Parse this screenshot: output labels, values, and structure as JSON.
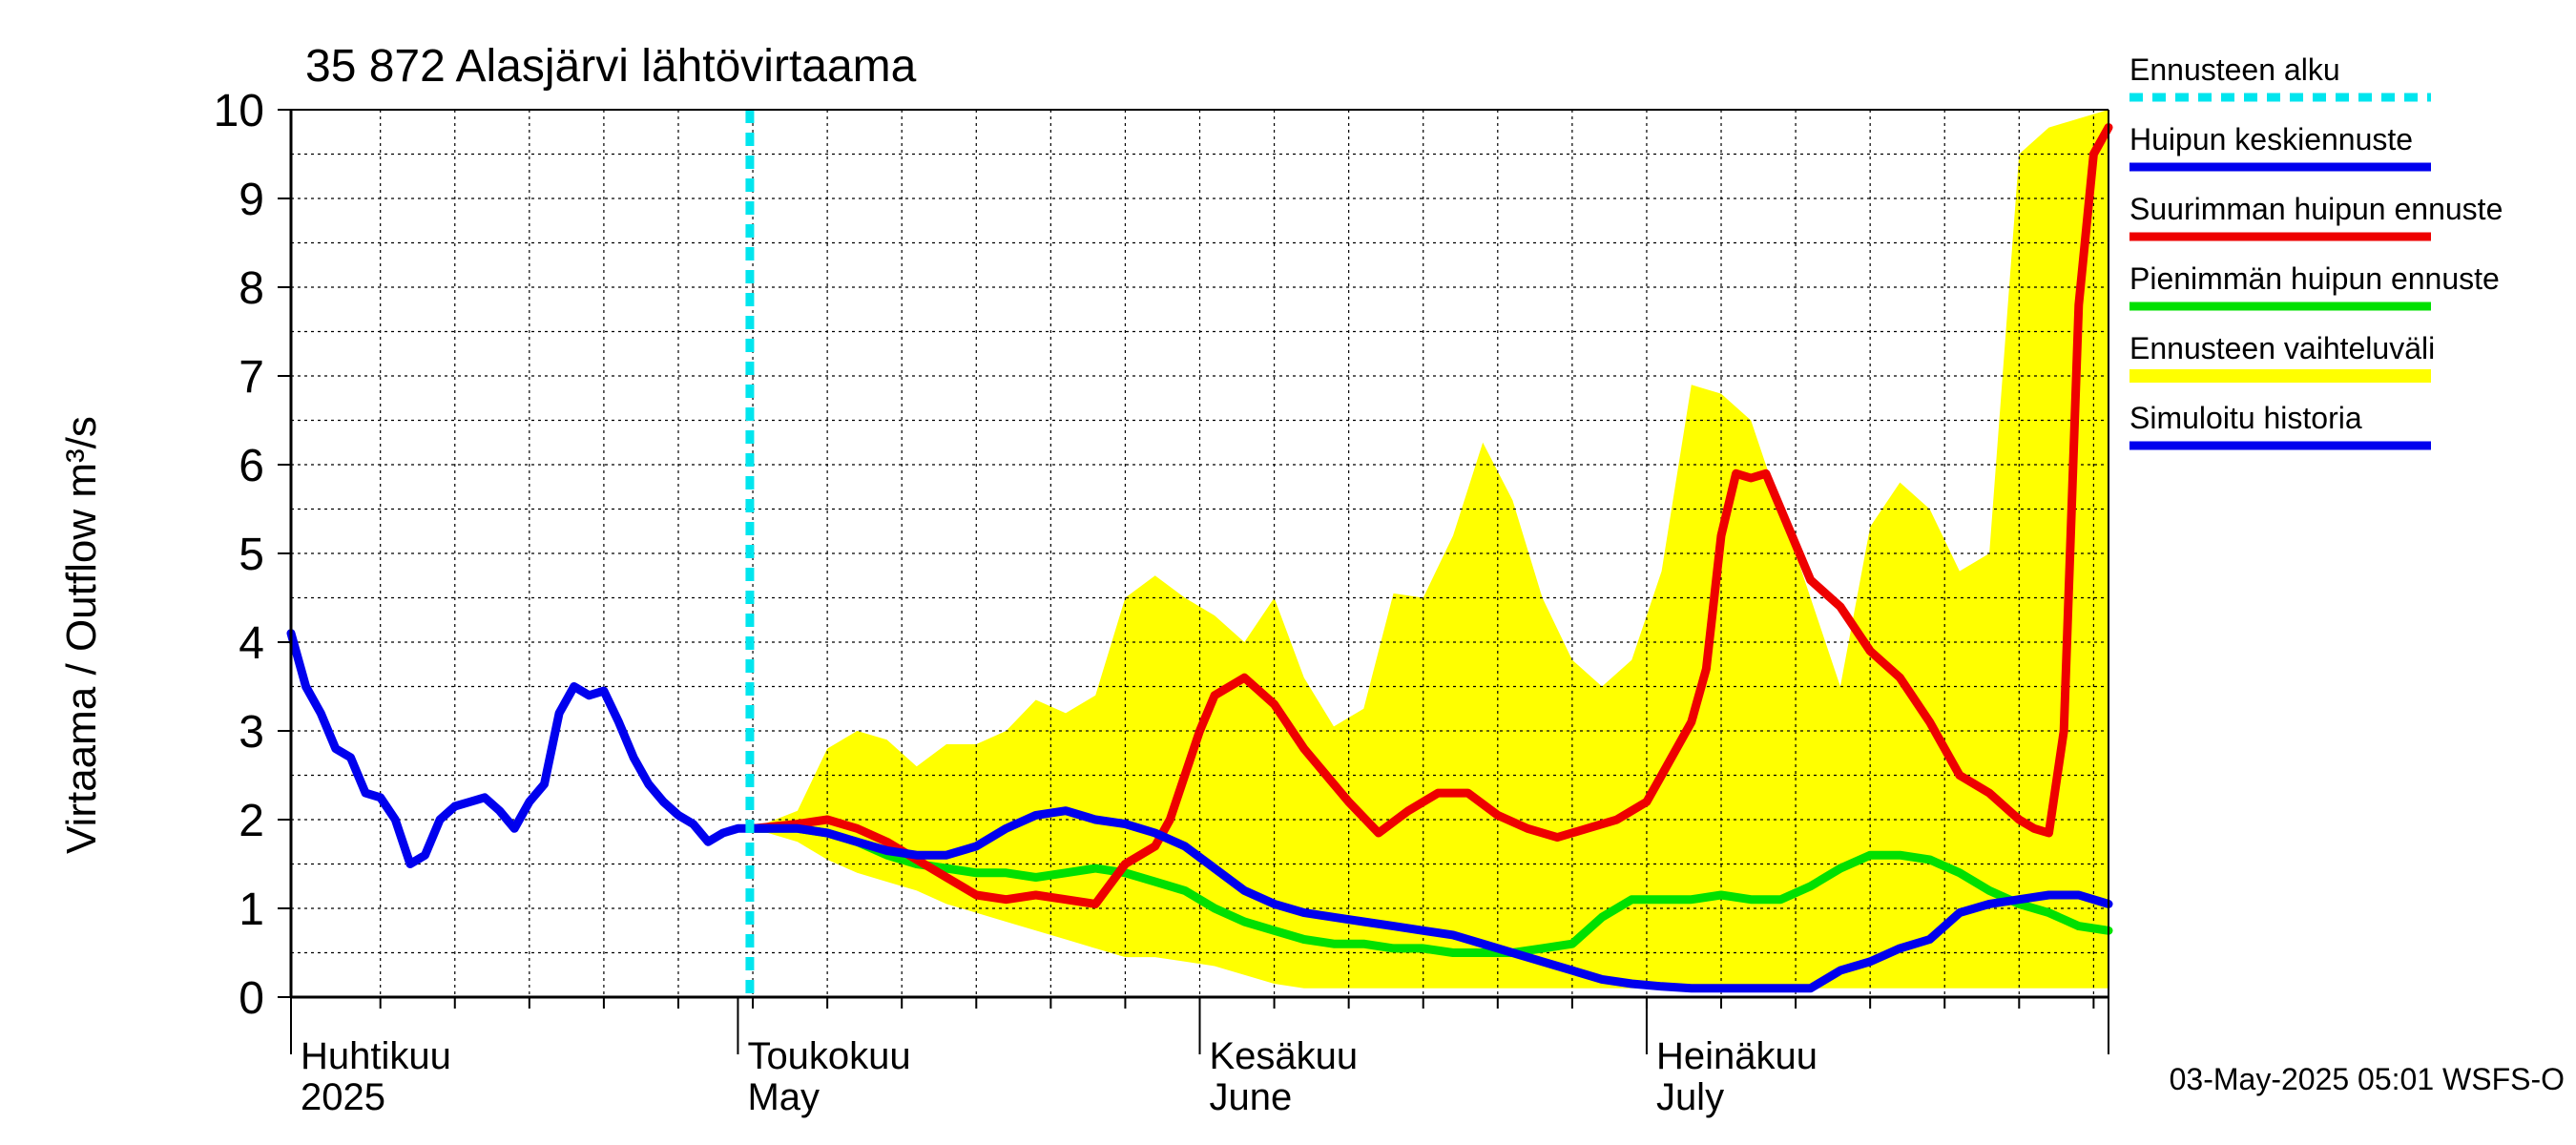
{
  "chart_data": {
    "type": "line",
    "title": "35 872 Alasjärvi lähtövirtaama",
    "ylabel": "Virtaama / Outflow    m³/s",
    "ylim": [
      0,
      10
    ],
    "y_ticks": [
      0,
      1,
      2,
      3,
      4,
      5,
      6,
      7,
      8,
      9,
      10
    ],
    "x_range_days": [
      0,
      122
    ],
    "month_labels": [
      {
        "day": 0,
        "fi": "Huhtikuu",
        "en": "2025"
      },
      {
        "day": 30,
        "fi": "Toukokuu",
        "en": "May"
      },
      {
        "day": 61,
        "fi": "Kesäkuu",
        "en": "June"
      },
      {
        "day": 91,
        "fi": "Heinäkuu",
        "en": "July"
      }
    ],
    "forecast_start_day": 30.8,
    "footer": "03-May-2025 05:01 WSFS-O",
    "legend": [
      {
        "label": "Ennusteen alku",
        "color": "#00e5ee",
        "style": "dashed"
      },
      {
        "label": "Huipun keskiennuste",
        "color": "#0000ee",
        "style": "solid"
      },
      {
        "label": "Suurimman huipun ennuste",
        "color": "#ee0000",
        "style": "solid"
      },
      {
        "label": "Pienimmän huipun ennuste",
        "color": "#00e000",
        "style": "solid"
      },
      {
        "label": "Ennusteen vaihteluväli",
        "color": "#ffff00",
        "style": "band"
      },
      {
        "label": "Simuloitu historia",
        "color": "#0000ee",
        "style": "solid"
      }
    ],
    "series": [
      {
        "name": "Simuloitu historia",
        "color": "#0000ee",
        "x": [
          0,
          1,
          2,
          3,
          4,
          5,
          6,
          7,
          8,
          9,
          10,
          11,
          12,
          13,
          14,
          15,
          16,
          17,
          18,
          19,
          20,
          21,
          22,
          23,
          24,
          25,
          26,
          27,
          28,
          29,
          30,
          31,
          32
        ],
        "y": [
          4.1,
          3.5,
          3.2,
          2.8,
          2.7,
          2.3,
          2.25,
          2.0,
          1.5,
          1.6,
          2.0,
          2.15,
          2.2,
          2.25,
          2.1,
          1.9,
          2.2,
          2.4,
          3.2,
          3.5,
          3.4,
          3.45,
          3.1,
          2.7,
          2.4,
          2.2,
          2.05,
          1.95,
          1.75,
          1.85,
          1.9,
          1.9,
          1.9
        ]
      },
      {
        "name": "Suurimman huipun ennuste",
        "color": "#ee0000",
        "x": [
          31,
          34,
          36,
          38,
          40,
          42,
          44,
          46,
          48,
          50,
          52,
          54,
          56,
          58,
          59,
          61,
          62,
          64,
          66,
          68,
          70,
          71,
          73,
          75,
          77,
          79,
          81,
          83,
          85,
          87,
          89,
          91,
          92,
          94,
          95,
          96,
          97,
          98,
          99,
          101,
          102,
          104,
          106,
          108,
          110,
          112,
          114,
          116,
          117,
          118,
          119,
          120,
          121,
          122
        ],
        "y": [
          1.9,
          1.95,
          2.0,
          1.9,
          1.75,
          1.55,
          1.35,
          1.15,
          1.1,
          1.15,
          1.1,
          1.05,
          1.5,
          1.7,
          2.0,
          3.0,
          3.4,
          3.6,
          3.3,
          2.8,
          2.4,
          2.2,
          1.85,
          2.1,
          2.3,
          2.3,
          2.05,
          1.9,
          1.8,
          1.9,
          2.0,
          2.2,
          2.5,
          3.1,
          3.7,
          5.2,
          5.9,
          5.85,
          5.9,
          5.1,
          4.7,
          4.4,
          3.9,
          3.6,
          3.1,
          2.5,
          2.3,
          2.0,
          1.9,
          1.85,
          3.0,
          7.8,
          9.5,
          9.8
        ]
      },
      {
        "name": "Pienimmän huipun ennuste",
        "color": "#00e000",
        "x": [
          31,
          34,
          36,
          38,
          40,
          42,
          44,
          46,
          48,
          50,
          52,
          54,
          56,
          58,
          60,
          62,
          64,
          66,
          68,
          70,
          72,
          74,
          76,
          78,
          80,
          82,
          84,
          86,
          88,
          90,
          92,
          94,
          96,
          98,
          100,
          102,
          104,
          106,
          108,
          110,
          112,
          114,
          116,
          118,
          120,
          122
        ],
        "y": [
          1.9,
          1.9,
          1.85,
          1.75,
          1.6,
          1.5,
          1.45,
          1.4,
          1.4,
          1.35,
          1.4,
          1.45,
          1.4,
          1.3,
          1.2,
          1.0,
          0.85,
          0.75,
          0.65,
          0.6,
          0.6,
          0.55,
          0.55,
          0.5,
          0.5,
          0.5,
          0.55,
          0.6,
          0.9,
          1.1,
          1.1,
          1.1,
          1.15,
          1.1,
          1.1,
          1.25,
          1.45,
          1.6,
          1.6,
          1.55,
          1.4,
          1.2,
          1.05,
          0.95,
          0.8,
          0.75
        ]
      },
      {
        "name": "Huipun keskiennuste",
        "color": "#0000ee",
        "x": [
          31,
          34,
          36,
          38,
          40,
          42,
          44,
          46,
          48,
          50,
          52,
          54,
          56,
          58,
          60,
          62,
          64,
          66,
          68,
          70,
          72,
          74,
          76,
          78,
          80,
          82,
          84,
          86,
          88,
          90,
          92,
          94,
          96,
          98,
          100,
          102,
          104,
          106,
          108,
          110,
          112,
          114,
          116,
          118,
          120,
          122
        ],
        "y": [
          1.9,
          1.9,
          1.85,
          1.75,
          1.65,
          1.6,
          1.6,
          1.7,
          1.9,
          2.05,
          2.1,
          2.0,
          1.95,
          1.85,
          1.7,
          1.45,
          1.2,
          1.05,
          0.95,
          0.9,
          0.85,
          0.8,
          0.75,
          0.7,
          0.6,
          0.5,
          0.4,
          0.3,
          0.2,
          0.15,
          0.12,
          0.1,
          0.1,
          0.1,
          0.1,
          0.1,
          0.3,
          0.4,
          0.55,
          0.65,
          0.95,
          1.05,
          1.1,
          1.15,
          1.15,
          1.05
        ]
      }
    ],
    "band": {
      "name": "Ennusteen vaihteluväli",
      "color": "#ffff00",
      "x": [
        31,
        34,
        36,
        38,
        40,
        42,
        44,
        46,
        48,
        50,
        52,
        54,
        56,
        58,
        60,
        62,
        64,
        66,
        68,
        70,
        72,
        74,
        76,
        78,
        80,
        82,
        84,
        86,
        88,
        90,
        92,
        94,
        96,
        98,
        100,
        102,
        104,
        106,
        108,
        110,
        112,
        114,
        116,
        118,
        120,
        122
      ],
      "upper": [
        1.9,
        2.1,
        2.8,
        3.0,
        2.9,
        2.6,
        2.85,
        2.85,
        3.0,
        3.35,
        3.2,
        3.4,
        4.5,
        4.75,
        4.5,
        4.3,
        4.0,
        4.5,
        3.6,
        3.05,
        3.25,
        4.55,
        4.5,
        5.2,
        6.25,
        5.6,
        4.5,
        3.8,
        3.5,
        3.8,
        4.8,
        6.9,
        6.8,
        6.5,
        5.5,
        4.5,
        3.5,
        5.3,
        5.8,
        5.5,
        4.8,
        5.0,
        9.5,
        9.8,
        9.9,
        10.0
      ],
      "lower": [
        1.9,
        1.75,
        1.55,
        1.4,
        1.3,
        1.2,
        1.05,
        0.95,
        0.85,
        0.75,
        0.65,
        0.55,
        0.45,
        0.45,
        0.4,
        0.35,
        0.25,
        0.15,
        0.1,
        0.1,
        0.1,
        0.1,
        0.1,
        0.1,
        0.1,
        0.1,
        0.1,
        0.1,
        0.1,
        0.1,
        0.1,
        0.1,
        0.1,
        0.1,
        0.1,
        0.1,
        0.1,
        0.1,
        0.1,
        0.1,
        0.1,
        0.1,
        0.1,
        0.1,
        0.1,
        0.1
      ]
    }
  }
}
